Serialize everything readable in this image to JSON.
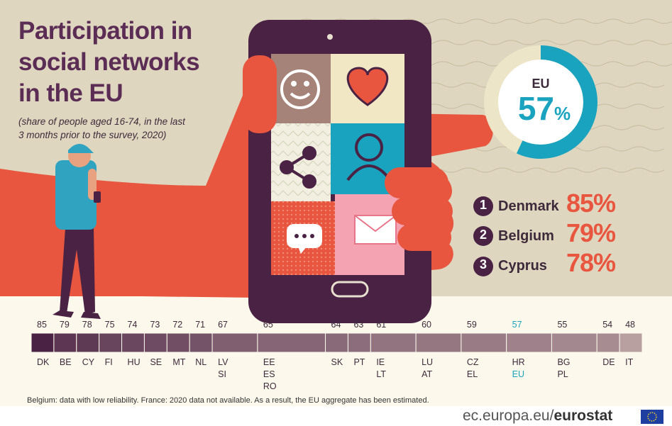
{
  "title": "Participation in\nsocial networks\nin the EU",
  "subtitle": "(share of people aged 16-74, in the last\n 3 months prior to the survey, 2020)",
  "eu_label": "EU",
  "eu_value_display": "57",
  "eu_percent_sign": "%",
  "top3": [
    {
      "rank": "1",
      "country": "Denmark",
      "value": "85%"
    },
    {
      "rank": "2",
      "country": "Belgium",
      "value": "79%"
    },
    {
      "rank": "3",
      "country": "Cyprus",
      "value": "78%"
    }
  ],
  "note": "Belgium: data with low reliability. France: 2020 data not available. As a result, the EU aggregate has been estimated.",
  "footer": {
    "domain": "ec.europa.eu/",
    "brand": "eurostat"
  },
  "colors": {
    "accent": "#e8563f",
    "purple": "#4a2244",
    "eu_blue": "#1aa3bf",
    "ring_bg": "#ede5c8"
  },
  "chart_data": {
    "type": "bar",
    "title": "Participation in social networks in the EU",
    "subtitle": "(share of people aged 16-74, in the last 3 months prior to the survey, 2020)",
    "eu_value": 57,
    "groups": [
      {
        "value": 85,
        "countries": [
          "DK"
        ]
      },
      {
        "value": 79,
        "countries": [
          "BE"
        ]
      },
      {
        "value": 78,
        "countries": [
          "CY"
        ]
      },
      {
        "value": 75,
        "countries": [
          "FI"
        ]
      },
      {
        "value": 74,
        "countries": [
          "HU"
        ]
      },
      {
        "value": 73,
        "countries": [
          "SE"
        ]
      },
      {
        "value": 72,
        "countries": [
          "MT"
        ]
      },
      {
        "value": 71,
        "countries": [
          "NL"
        ]
      },
      {
        "value": 67,
        "countries": [
          "LV",
          "SI"
        ]
      },
      {
        "value": 65,
        "countries": [
          "EE",
          "ES",
          "RO"
        ]
      },
      {
        "value": 64,
        "countries": [
          "SK"
        ]
      },
      {
        "value": 63,
        "countries": [
          "PT"
        ]
      },
      {
        "value": 61,
        "countries": [
          "IE",
          "LT"
        ]
      },
      {
        "value": 60,
        "countries": [
          "LU",
          "AT"
        ]
      },
      {
        "value": 59,
        "countries": [
          "CZ",
          "EL"
        ]
      },
      {
        "value": 57,
        "countries": [
          "HR",
          "EU"
        ]
      },
      {
        "value": 55,
        "countries": [
          "BG",
          "PL"
        ]
      },
      {
        "value": 54,
        "countries": [
          "DE"
        ]
      },
      {
        "value": 48,
        "countries": [
          "IT"
        ]
      }
    ]
  }
}
